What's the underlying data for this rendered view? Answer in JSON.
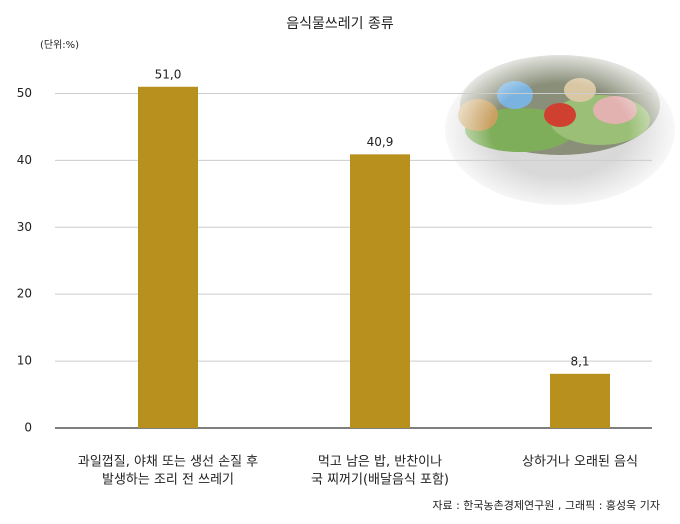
{
  "chart_data": {
    "type": "bar",
    "title": "음식물쓰레기 종류",
    "unit_label": "(단위:%)",
    "categories": [
      [
        "과일껍질, 야채 또는 생선 손질 후",
        "발생하는 조리 전 쓰레기"
      ],
      [
        "먹고 남은 밥, 반찬이나",
        "국 찌꺼기(배달음식 포함)"
      ],
      [
        "상하거나 오래된 음식"
      ]
    ],
    "values": [
      51.0,
      40.9,
      8.1
    ],
    "value_labels": [
      "51,0",
      "40,9",
      "8,1"
    ],
    "color": "#b8901e",
    "ylim": [
      0,
      55
    ],
    "yticks": [
      0,
      10,
      20,
      30,
      40,
      50
    ],
    "grid": true,
    "source": "자료 : 한국농촌경제연구원 , 그래픽 : 홍성욱 기자"
  }
}
